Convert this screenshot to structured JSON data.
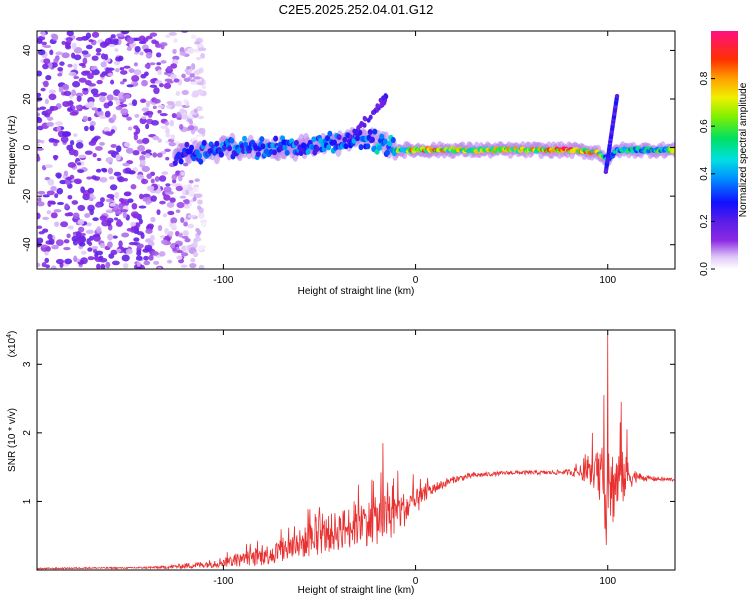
{
  "page_title": "C2E5.2025.252.04.01.G12",
  "chart_data": [
    {
      "type": "heatmap",
      "title": "C2E5.2025.252.04.01.G12",
      "xlabel": "Height of straight line (km)",
      "ylabel": "Frequency (Hz)",
      "xlim": [
        -197,
        135
      ],
      "ylim": [
        -50,
        48
      ],
      "xticks": [
        -100,
        0,
        100
      ],
      "xtick_labels": [
        "-100",
        "0",
        "100"
      ],
      "yticks": [
        -40,
        -20,
        0,
        20,
        40
      ],
      "ytick_labels": [
        "-40",
        "-20",
        "0",
        "20",
        "40"
      ],
      "colorbar": {
        "label": "Normalized spectral amplitude",
        "range": [
          0,
          1
        ],
        "ticks": [
          0.0,
          0.2,
          0.4,
          0.6,
          0.8
        ],
        "tick_labels": [
          "0.0",
          "0.2",
          "0.4",
          "0.6",
          "0.8"
        ]
      },
      "features": [
        {
          "name": "noise region",
          "x_range": [
            -197,
            -120
          ],
          "f_range": [
            -50,
            48
          ],
          "amplitude": 0.1
        },
        {
          "name": "signal track",
          "x": [
            -120,
            -100,
            -80,
            -60,
            -40,
            -25,
            -10,
            0,
            20,
            40,
            60,
            80,
            95,
            100,
            105,
            120,
            135
          ],
          "f": [
            -3,
            0,
            0,
            0,
            2,
            4,
            -1,
            -1,
            -1,
            -1,
            -1,
            -1,
            -2,
            -5,
            -1,
            -1,
            -1
          ],
          "amplitude": [
            0.3,
            0.35,
            0.35,
            0.35,
            0.35,
            0.35,
            0.55,
            0.8,
            0.7,
            0.7,
            0.7,
            0.85,
            0.7,
            0.4,
            0.5,
            0.5,
            0.6
          ]
        },
        {
          "name": "occultation spike",
          "x": 102,
          "f_range": [
            -10,
            22
          ],
          "amplitude": 0.25
        }
      ]
    },
    {
      "type": "line",
      "xlabel": "Height of straight line (km)",
      "ylabel": "SNR (10 * v/v)",
      "y_multiplier_label": "(x10",
      "y_multiplier_exp": "4",
      "xlim": [
        -197,
        135
      ],
      "ylim": [
        0,
        3.5
      ],
      "xticks": [
        -100,
        0,
        100
      ],
      "xtick_labels": [
        "-100",
        "0",
        "100"
      ],
      "yticks": [
        1,
        2,
        3
      ],
      "ytick_labels": [
        "1",
        "2",
        "3"
      ],
      "series": [
        {
          "name": "SNR",
          "color": "#e83030",
          "x": [
            -197,
            -170,
            -150,
            -130,
            -120,
            -110,
            -100,
            -90,
            -80,
            -70,
            -60,
            -50,
            -40,
            -30,
            -20,
            -15,
            -10,
            -5,
            0,
            5,
            10,
            20,
            30,
            40,
            50,
            60,
            70,
            80,
            85,
            90,
            95,
            98,
            100,
            102,
            105,
            108,
            110,
            115,
            120,
            130,
            135
          ],
          "mean": [
            0.02,
            0.03,
            0.03,
            0.04,
            0.06,
            0.08,
            0.12,
            0.15,
            0.2,
            0.28,
            0.38,
            0.48,
            0.58,
            0.66,
            0.72,
            0.76,
            0.82,
            0.9,
            0.98,
            1.1,
            1.2,
            1.32,
            1.38,
            1.4,
            1.42,
            1.42,
            1.42,
            1.43,
            1.42,
            1.42,
            1.38,
            1.2,
            0.9,
            1.2,
            1.3,
            1.35,
            1.38,
            1.36,
            1.34,
            1.32,
            1.32
          ],
          "jitter": [
            0.01,
            0.01,
            0.01,
            0.02,
            0.04,
            0.05,
            0.08,
            0.1,
            0.14,
            0.18,
            0.22,
            0.26,
            0.3,
            0.32,
            0.35,
            0.35,
            0.3,
            0.25,
            0.2,
            0.12,
            0.08,
            0.05,
            0.04,
            0.03,
            0.03,
            0.03,
            0.03,
            0.04,
            0.1,
            0.15,
            0.25,
            0.5,
            0.8,
            0.6,
            0.5,
            0.4,
            0.25,
            0.08,
            0.04,
            0.03,
            0.03
          ],
          "peaks": [
            {
              "x": -17,
              "y": 1.85
            },
            {
              "x": -22,
              "y": 1.3
            },
            {
              "x": -32,
              "y": 1.0
            },
            {
              "x": 100,
              "y": 3.45
            },
            {
              "x": 98,
              "y": 2.55
            },
            {
              "x": 107,
              "y": 2.45
            },
            {
              "x": 110,
              "y": 2.05
            },
            {
              "x": 92,
              "y": 2.0
            }
          ]
        }
      ]
    }
  ]
}
